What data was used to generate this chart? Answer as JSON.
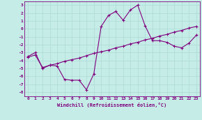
{
  "x_values": [
    0,
    1,
    2,
    3,
    4,
    5,
    6,
    7,
    8,
    9,
    10,
    11,
    12,
    13,
    14,
    15,
    16,
    17,
    18,
    19,
    20,
    21,
    22,
    23
  ],
  "y_line1": [
    -3.5,
    -3.0,
    -5.0,
    -4.6,
    -4.7,
    -6.4,
    -6.5,
    -6.5,
    -7.7,
    -5.7,
    0.3,
    1.7,
    2.2,
    1.1,
    2.4,
    3.0,
    0.4,
    -1.5,
    -1.5,
    -1.7,
    -2.2,
    -2.4,
    -1.8,
    -0.8
  ],
  "y_line2": [
    -3.6,
    -3.3,
    -4.9,
    -4.6,
    -4.4,
    -4.1,
    -3.9,
    -3.7,
    -3.4,
    -3.1,
    -2.9,
    -2.7,
    -2.4,
    -2.2,
    -1.9,
    -1.7,
    -1.4,
    -1.2,
    -0.9,
    -0.7,
    -0.4,
    -0.2,
    0.1,
    0.3
  ],
  "background_color": "#c5ece6",
  "line_color": "#800080",
  "grid_color": "#b0ddd8",
  "xlabel": "Windchill (Refroidissement éolien,°C)",
  "ylim": [
    -8.5,
    3.5
  ],
  "xlim": [
    -0.5,
    23.5
  ],
  "yticks": [
    3,
    2,
    1,
    0,
    -1,
    -2,
    -3,
    -4,
    -5,
    -6,
    -7,
    -8
  ],
  "xticks": [
    0,
    1,
    2,
    3,
    4,
    5,
    6,
    7,
    8,
    9,
    10,
    11,
    12,
    13,
    14,
    15,
    16,
    17,
    18,
    19,
    20,
    21,
    22,
    23
  ]
}
